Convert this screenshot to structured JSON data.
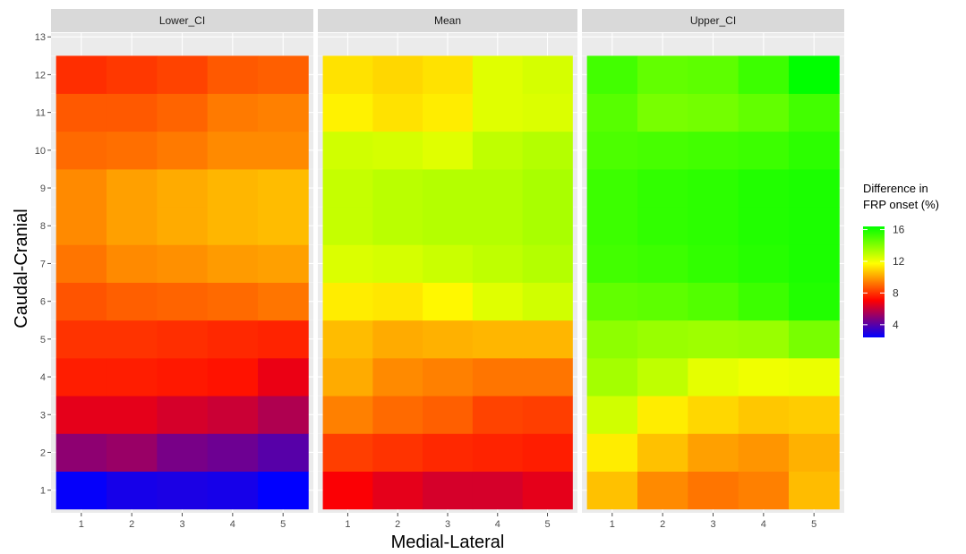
{
  "chart_data": {
    "type": "heatmap",
    "xlabel": "Medial-Lateral",
    "ylabel": "Caudal-Cranial",
    "x_categories": [
      "1",
      "2",
      "3",
      "4",
      "5"
    ],
    "y_ticks": [
      "1",
      "2",
      "3",
      "4",
      "5",
      "6",
      "7",
      "8",
      "9",
      "10",
      "11",
      "12",
      "13"
    ],
    "ylim": [
      0.4,
      13.1
    ],
    "legend": {
      "title_line1": "Difference in",
      "title_line2": "FRP onset (%)",
      "ticks": [
        4,
        8,
        12,
        16
      ],
      "range": [
        2.4,
        16.4
      ],
      "colors": [
        "#0000ff",
        "#ff0000",
        "#ffff00",
        "#00ff00"
      ],
      "placement": "right"
    },
    "panels": [
      {
        "title": "Lower_CI",
        "rows_y1_to_y12": [
          [
            2.5,
            2.8,
            2.9,
            2.8,
            2.4
          ],
          [
            5.0,
            5.2,
            4.6,
            4.4,
            4.0
          ],
          [
            6.6,
            6.6,
            6.3,
            6.1,
            5.6
          ],
          [
            7.6,
            7.6,
            7.5,
            7.4,
            6.7
          ],
          [
            8.0,
            8.0,
            7.9,
            7.8,
            7.7
          ],
          [
            8.6,
            8.8,
            8.9,
            9.0,
            9.2
          ],
          [
            9.2,
            9.6,
            9.7,
            9.9,
            10.0
          ],
          [
            9.6,
            10.0,
            10.2,
            10.4,
            10.5
          ],
          [
            9.6,
            10.0,
            10.2,
            10.4,
            10.5
          ],
          [
            9.0,
            9.1,
            9.3,
            9.6,
            9.6
          ],
          [
            8.7,
            8.7,
            8.9,
            9.3,
            9.4
          ],
          [
            7.9,
            8.1,
            8.3,
            8.7,
            8.8
          ]
        ]
      },
      {
        "title": "Mean",
        "rows_y1_to_y12": [
          [
            7.0,
            6.6,
            6.3,
            6.3,
            6.6
          ],
          [
            8.2,
            8.0,
            7.8,
            7.7,
            7.6
          ],
          [
            9.4,
            9.0,
            8.8,
            8.3,
            8.2
          ],
          [
            10.2,
            9.6,
            9.4,
            9.2,
            9.2
          ],
          [
            10.5,
            10.2,
            10.3,
            10.4,
            10.4
          ],
          [
            11.4,
            11.3,
            11.6,
            12.3,
            12.6
          ],
          [
            12.4,
            12.5,
            12.7,
            12.9,
            13.1
          ],
          [
            12.8,
            13.0,
            13.1,
            13.1,
            13.3
          ],
          [
            12.8,
            13.0,
            13.1,
            13.1,
            13.3
          ],
          [
            12.6,
            12.5,
            12.3,
            12.9,
            13.1
          ],
          [
            11.5,
            11.2,
            11.4,
            12.3,
            12.4
          ],
          [
            11.2,
            11.0,
            11.2,
            12.3,
            12.5
          ]
        ]
      },
      {
        "title": "Upper_CI",
        "rows_y1_to_y12": [
          [
            10.6,
            9.6,
            9.2,
            9.4,
            10.5
          ],
          [
            11.4,
            10.6,
            10.0,
            9.8,
            10.3
          ],
          [
            12.6,
            11.4,
            11.0,
            10.7,
            10.8
          ],
          [
            13.4,
            12.9,
            12.2,
            12.0,
            12.1
          ],
          [
            13.8,
            13.6,
            13.5,
            13.6,
            14.2
          ],
          [
            14.6,
            14.7,
            14.9,
            15.3,
            15.8
          ],
          [
            15.2,
            15.3,
            15.5,
            15.7,
            15.9
          ],
          [
            15.3,
            15.5,
            15.6,
            15.8,
            15.9
          ],
          [
            15.3,
            15.5,
            15.6,
            15.8,
            15.9
          ],
          [
            15.0,
            15.1,
            15.2,
            15.3,
            15.6
          ],
          [
            14.8,
            14.2,
            14.3,
            14.6,
            15.2
          ],
          [
            15.2,
            14.6,
            14.7,
            15.3,
            16.4
          ]
        ]
      }
    ]
  }
}
